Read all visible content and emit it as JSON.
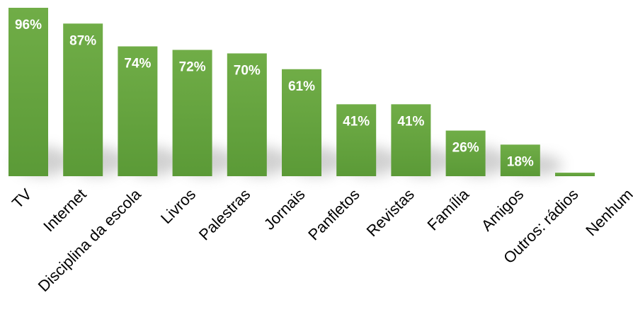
{
  "chart_data": {
    "type": "bar",
    "categories": [
      "TV",
      "Internet",
      "Disciplina da escola",
      "Livros",
      "Palestras",
      "Jornais",
      "Panfletos",
      "Revistas",
      "Família",
      "Amigos",
      "Outros: rádios",
      "Nenhum"
    ],
    "values": [
      96,
      87,
      74,
      72,
      70,
      61,
      41,
      41,
      26,
      18,
      2,
      0
    ],
    "value_labels": [
      "96%",
      "87%",
      "74%",
      "72%",
      "70%",
      "61%",
      "41%",
      "41%",
      "26%",
      "18%",
      "",
      ""
    ],
    "unit": "%",
    "ylim": [
      0,
      96
    ],
    "grid": false,
    "legend": "none",
    "colors": {
      "bar_top": "#70ad47",
      "bar_bottom": "#5b9a37",
      "label": "#ffffff",
      "shadow": "#9a9a9a"
    }
  }
}
